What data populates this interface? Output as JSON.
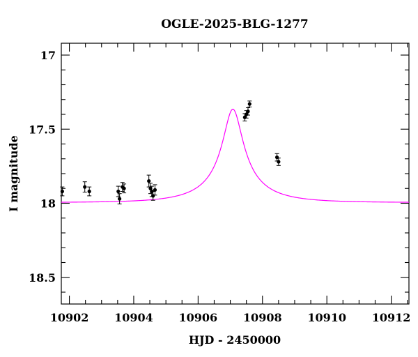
{
  "chart_data": {
    "type": "scatter",
    "title": "OGLE-2025-BLG-1277",
    "xlabel": "HJD - 2450000",
    "ylabel": "I magnitude",
    "xlim": [
      10901.75,
      10912.55
    ],
    "ylim": [
      18.68,
      16.92
    ],
    "y_inverted": true,
    "grid": false,
    "xticks": [
      10902,
      10904,
      10906,
      10908,
      10910,
      10912
    ],
    "yticks": [
      17,
      17.5,
      18,
      18.5
    ],
    "xticklabels": [
      "10902",
      "10904",
      "10906",
      "10908",
      "10910",
      "10912"
    ],
    "yticklabels": [
      "17",
      "17.5",
      "18",
      "18.5"
    ],
    "colors": {
      "data": "#000000",
      "model": "#ff00ff",
      "axes": "#000000"
    },
    "series": [
      {
        "kind": "points",
        "x": [
          10901.78,
          10902.48,
          10902.62,
          10903.52,
          10903.56,
          10903.65,
          10903.7,
          10904.47,
          10904.52,
          10904.56,
          10904.6,
          10904.66,
          10907.45,
          10907.5,
          10907.55,
          10907.6,
          10908.45,
          10908.5
        ],
        "y": [
          17.92,
          17.89,
          17.92,
          17.92,
          17.97,
          17.89,
          17.9,
          17.85,
          17.9,
          17.92,
          17.95,
          17.91,
          17.42,
          17.4,
          17.38,
          17.33,
          17.69,
          17.72
        ],
        "yerr": [
          0.03,
          0.035,
          0.03,
          0.035,
          0.035,
          0.03,
          0.03,
          0.04,
          0.035,
          0.035,
          0.03,
          0.035,
          0.025,
          0.025,
          0.025,
          0.02,
          0.025,
          0.025
        ]
      },
      {
        "kind": "model",
        "t0": 10907.08,
        "u0": 0.19,
        "tE": 1.68,
        "baseline": 17.995,
        "peak": 17.365
      }
    ]
  }
}
